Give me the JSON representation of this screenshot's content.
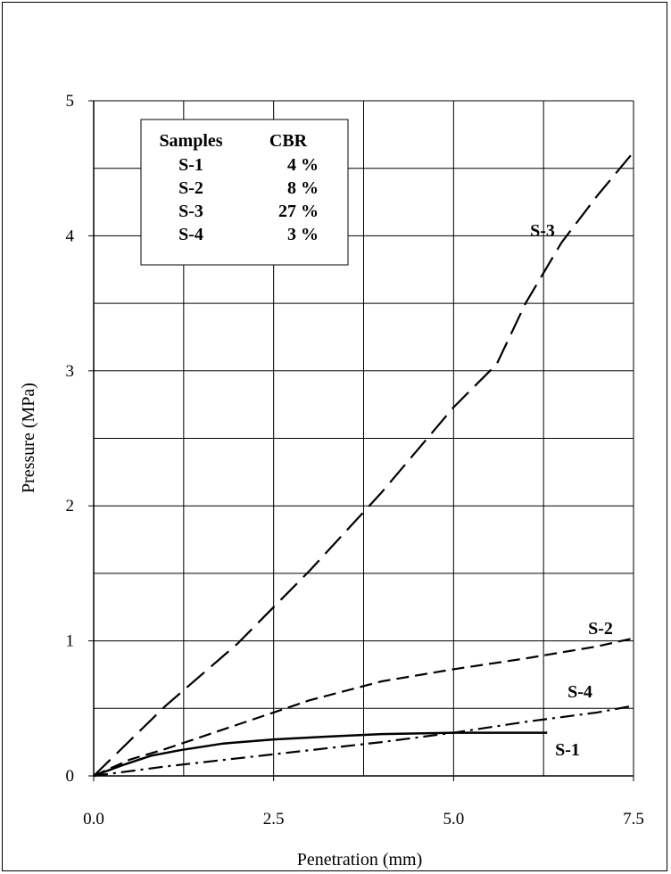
{
  "chart_data": {
    "type": "line",
    "xlabel": "Penetration (mm)",
    "ylabel": "Pressure (MPa)",
    "xlim": [
      0,
      7.5
    ],
    "ylim": [
      0,
      5
    ],
    "x_ticks": [
      "0.0",
      "2.5",
      "5.0",
      "7.5"
    ],
    "y_ticks": [
      "0",
      "1",
      "2",
      "3",
      "4",
      "5"
    ],
    "grid": true,
    "legend_table": {
      "headers": [
        "Samples",
        "CBR"
      ],
      "rows": [
        {
          "sample": "S-1",
          "cbr": "4 %"
        },
        {
          "sample": "S-2",
          "cbr": "8 %"
        },
        {
          "sample": "S-3",
          "cbr": "27 %"
        },
        {
          "sample": "S-4",
          "cbr": "3 %"
        }
      ],
      "placement": "top-left"
    },
    "series": [
      {
        "name": "S-1",
        "style": "solid",
        "x": [
          0,
          0.4,
          0.8,
          1.2,
          1.8,
          2.5,
          3.2,
          4.0,
          5.0,
          5.8,
          6.3
        ],
        "y": [
          0,
          0.08,
          0.15,
          0.19,
          0.24,
          0.27,
          0.29,
          0.31,
          0.32,
          0.32,
          0.32
        ]
      },
      {
        "name": "S-2",
        "style": "short-dash",
        "x": [
          0,
          0.5,
          1.0,
          2.0,
          3.0,
          4.0,
          5.0,
          6.0,
          7.0,
          7.5
        ],
        "y": [
          0,
          0.12,
          0.2,
          0.38,
          0.56,
          0.7,
          0.79,
          0.87,
          0.96,
          1.02
        ]
      },
      {
        "name": "S-3",
        "style": "long-dash",
        "x": [
          0,
          1.0,
          2.0,
          3.0,
          4.0,
          5.0,
          5.6,
          6.0,
          6.5,
          7.0,
          7.5
        ],
        "y": [
          0,
          0.52,
          0.98,
          1.52,
          2.1,
          2.73,
          3.05,
          3.5,
          3.95,
          4.3,
          4.62
        ]
      },
      {
        "name": "S-4",
        "style": "dash-dot",
        "x": [
          0,
          1.0,
          2.0,
          3.0,
          4.0,
          5.0,
          6.0,
          7.0,
          7.5
        ],
        "y": [
          0,
          0.07,
          0.13,
          0.19,
          0.25,
          0.32,
          0.4,
          0.47,
          0.52
        ]
      }
    ]
  }
}
